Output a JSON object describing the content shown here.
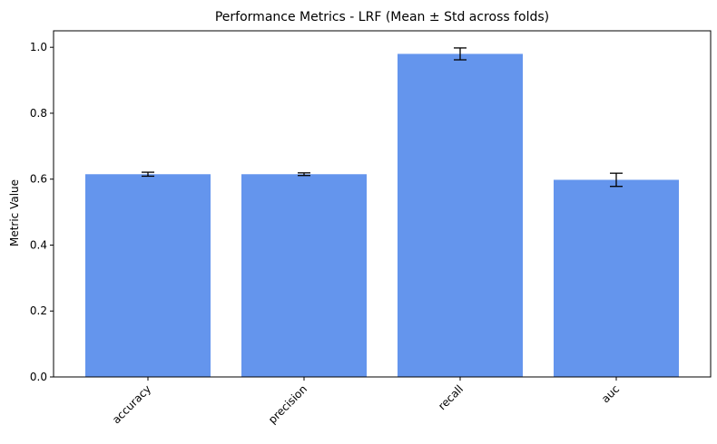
{
  "chart_data": {
    "type": "bar",
    "title": "Performance Metrics - LRF (Mean ± Std across folds)",
    "xlabel": "",
    "ylabel": "Metric Value",
    "categories": [
      "accuracy",
      "precision",
      "recall",
      "auc"
    ],
    "values": [
      0.615,
      0.615,
      0.98,
      0.598
    ],
    "errors": [
      0.006,
      0.004,
      0.018,
      0.02
    ],
    "ylim": [
      0,
      1.05
    ],
    "yticks": [
      "0.0",
      "0.2",
      "0.4",
      "0.6",
      "0.8",
      "1.0"
    ],
    "bar_color": "#6495ed",
    "grid": false,
    "legend": "none"
  }
}
